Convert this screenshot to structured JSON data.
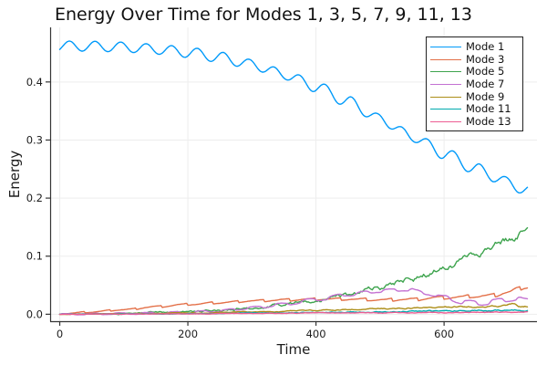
{
  "chart_data": {
    "type": "line",
    "title": "Energy Over Time for Modes 1, 3, 5, 7, 9, 11, 13",
    "xlabel": "Time",
    "ylabel": "Energy",
    "xlim": [
      -15,
      745
    ],
    "ylim": [
      -0.012,
      0.494
    ],
    "grid": true,
    "legend_position": "top-right",
    "x_ticks": [
      {
        "v": 0,
        "label": "0"
      },
      {
        "v": 200,
        "label": "200"
      },
      {
        "v": 400,
        "label": "400"
      },
      {
        "v": 600,
        "label": "600"
      }
    ],
    "y_ticks": [
      {
        "v": 0.0,
        "label": "0.0"
      },
      {
        "v": 0.1,
        "label": "0.1"
      },
      {
        "v": 0.2,
        "label": "0.2"
      },
      {
        "v": 0.3,
        "label": "0.3"
      },
      {
        "v": 0.4,
        "label": "0.4"
      }
    ],
    "t_end": 730,
    "series": [
      {
        "name": "Mode 1",
        "color": "#009AFA",
        "keypoints": [
          [
            0,
            0.462
          ],
          [
            50,
            0.4615
          ],
          [
            100,
            0.46
          ],
          [
            150,
            0.4565
          ],
          [
            200,
            0.451
          ],
          [
            250,
            0.4425
          ],
          [
            300,
            0.43
          ],
          [
            350,
            0.413
          ],
          [
            400,
            0.392
          ],
          [
            450,
            0.366
          ],
          [
            500,
            0.336
          ],
          [
            550,
            0.306
          ],
          [
            600,
            0.277
          ],
          [
            650,
            0.25
          ],
          [
            700,
            0.227
          ],
          [
            730,
            0.212
          ]
        ],
        "wiggle": {
          "kind": "sine",
          "period": 40,
          "phase": 5,
          "amp_start": 0.0085,
          "amp_end": 0.0095,
          "seed": 1
        }
      },
      {
        "name": "Mode 3",
        "color": "#E36F47",
        "keypoints": [
          [
            0,
            0.001
          ],
          [
            50,
            0.004
          ],
          [
            100,
            0.008
          ],
          [
            150,
            0.013
          ],
          [
            200,
            0.017
          ],
          [
            250,
            0.02
          ],
          [
            300,
            0.023
          ],
          [
            350,
            0.025
          ],
          [
            400,
            0.026
          ],
          [
            450,
            0.026
          ],
          [
            500,
            0.025
          ],
          [
            550,
            0.026
          ],
          [
            600,
            0.029
          ],
          [
            650,
            0.031
          ],
          [
            680,
            0.033
          ],
          [
            700,
            0.038
          ],
          [
            715,
            0.044
          ],
          [
            730,
            0.047
          ]
        ],
        "wiggle": {
          "kind": "saw",
          "period": 40,
          "phase": 0,
          "amp_start": 0.0015,
          "amp_end": 0.004,
          "seed": 3
        }
      },
      {
        "name": "Mode 5",
        "color": "#3EA44E",
        "keypoints": [
          [
            0,
            0.0
          ],
          [
            100,
            0.001
          ],
          [
            200,
            0.004
          ],
          [
            250,
            0.007
          ],
          [
            300,
            0.011
          ],
          [
            350,
            0.017
          ],
          [
            400,
            0.024
          ],
          [
            450,
            0.033
          ],
          [
            500,
            0.046
          ],
          [
            550,
            0.061
          ],
          [
            600,
            0.079
          ],
          [
            650,
            0.101
          ],
          [
            700,
            0.126
          ],
          [
            730,
            0.147
          ]
        ],
        "wiggle": {
          "kind": "noise",
          "period": 0,
          "phase": 0,
          "amp_start": 0.0005,
          "amp_end": 0.0075,
          "seed": 5
        }
      },
      {
        "name": "Mode 7",
        "color": "#C371D2",
        "keypoints": [
          [
            0,
            0.0
          ],
          [
            100,
            0.001
          ],
          [
            200,
            0.003
          ],
          [
            250,
            0.006
          ],
          [
            300,
            0.011
          ],
          [
            350,
            0.017
          ],
          [
            400,
            0.025
          ],
          [
            450,
            0.034
          ],
          [
            500,
            0.04
          ],
          [
            540,
            0.043
          ],
          [
            570,
            0.037
          ],
          [
            600,
            0.029
          ],
          [
            630,
            0.021
          ],
          [
            660,
            0.019
          ],
          [
            690,
            0.024
          ],
          [
            715,
            0.027
          ],
          [
            730,
            0.023
          ]
        ],
        "wiggle": {
          "kind": "square",
          "period": 42,
          "phase": 0,
          "amp_start": 0.001,
          "amp_end": 0.0035,
          "seed": 7
        }
      },
      {
        "name": "Mode 9",
        "color": "#AC8E18",
        "keypoints": [
          [
            0,
            0.0
          ],
          [
            100,
            0.001
          ],
          [
            200,
            0.002
          ],
          [
            300,
            0.004
          ],
          [
            400,
            0.007
          ],
          [
            500,
            0.01
          ],
          [
            600,
            0.012
          ],
          [
            650,
            0.013
          ],
          [
            690,
            0.014
          ],
          [
            705,
            0.019
          ],
          [
            720,
            0.013
          ],
          [
            730,
            0.014
          ]
        ],
        "wiggle": {
          "kind": "noise",
          "period": 0,
          "phase": 0,
          "amp_start": 0.0003,
          "amp_end": 0.0018,
          "seed": 9
        }
      },
      {
        "name": "Mode 11",
        "color": "#00AAAE",
        "keypoints": [
          [
            0,
            0.0
          ],
          [
            100,
            0.0005
          ],
          [
            200,
            0.001
          ],
          [
            300,
            0.002
          ],
          [
            400,
            0.003
          ],
          [
            500,
            0.0045
          ],
          [
            600,
            0.006
          ],
          [
            650,
            0.0065
          ],
          [
            700,
            0.0075
          ],
          [
            730,
            0.007
          ]
        ],
        "wiggle": {
          "kind": "noise",
          "period": 0,
          "phase": 0,
          "amp_start": 0.0003,
          "amp_end": 0.0016,
          "seed": 11
        }
      },
      {
        "name": "Mode 13",
        "color": "#ED5E93",
        "keypoints": [
          [
            0,
            0.0
          ],
          [
            100,
            0.0003
          ],
          [
            200,
            0.0008
          ],
          [
            300,
            0.0013
          ],
          [
            400,
            0.002
          ],
          [
            500,
            0.0025
          ],
          [
            600,
            0.003
          ],
          [
            700,
            0.0035
          ],
          [
            730,
            0.004
          ]
        ],
        "wiggle": {
          "kind": "noise",
          "period": 0,
          "phase": 0,
          "amp_start": 0.0002,
          "amp_end": 0.0009,
          "seed": 13
        }
      }
    ],
    "style": {
      "spine_color": "#353535",
      "grid_color": "#ededed",
      "tick_label_color": "#1c1c1c",
      "background": "#ffffff"
    }
  }
}
